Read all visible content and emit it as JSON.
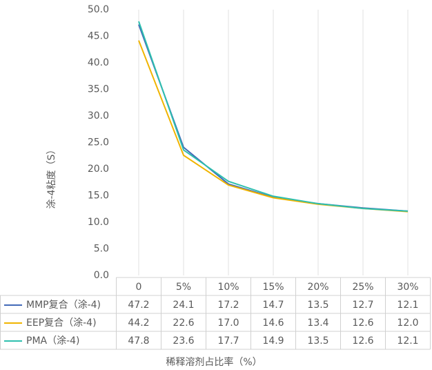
{
  "chart_data": {
    "type": "line",
    "y_label": "涂-4粘度（S）",
    "x_label": "稀释溶剂占比率（%）",
    "categories": [
      "0",
      "5%",
      "10%",
      "15%",
      "20%",
      "25%",
      "30%"
    ],
    "ylim": [
      0,
      50
    ],
    "yticks": [
      {
        "value": 0,
        "label": "0.0"
      },
      {
        "value": 5,
        "label": "5.0"
      },
      {
        "value": 10,
        "label": "10.0"
      },
      {
        "value": 15,
        "label": "15.0"
      },
      {
        "value": 20,
        "label": "20.0"
      },
      {
        "value": 25,
        "label": "25.0"
      },
      {
        "value": 30,
        "label": "30.0"
      },
      {
        "value": 35,
        "label": "35.0"
      },
      {
        "value": 40,
        "label": "40.0"
      },
      {
        "value": 45,
        "label": "45.0"
      },
      {
        "value": 50,
        "label": "50.0"
      }
    ],
    "grid": true,
    "series": [
      {
        "name": "MMP复合（涂-4)",
        "color": "#4169b8",
        "values": [
          47.2,
          24.1,
          17.2,
          14.7,
          13.5,
          12.7,
          12.1
        ],
        "value_labels": [
          "47.2",
          "24.1",
          "17.2",
          "14.7",
          "13.5",
          "12.7",
          "12.1"
        ]
      },
      {
        "name": "EEP复合（涂-4)",
        "color": "#f0b400",
        "values": [
          44.2,
          22.6,
          17.0,
          14.6,
          13.4,
          12.6,
          12.0
        ],
        "value_labels": [
          "44.2",
          "22.6",
          "17.0",
          "14.6",
          "13.4",
          "12.6",
          "12.0"
        ]
      },
      {
        "name": "PMA（涂-4)",
        "color": "#2ebfae",
        "values": [
          47.8,
          23.6,
          17.7,
          14.9,
          13.5,
          12.6,
          12.1
        ],
        "value_labels": [
          "47.8",
          "23.6",
          "17.7",
          "14.9",
          "13.5",
          "12.6",
          "12.1"
        ]
      }
    ]
  }
}
